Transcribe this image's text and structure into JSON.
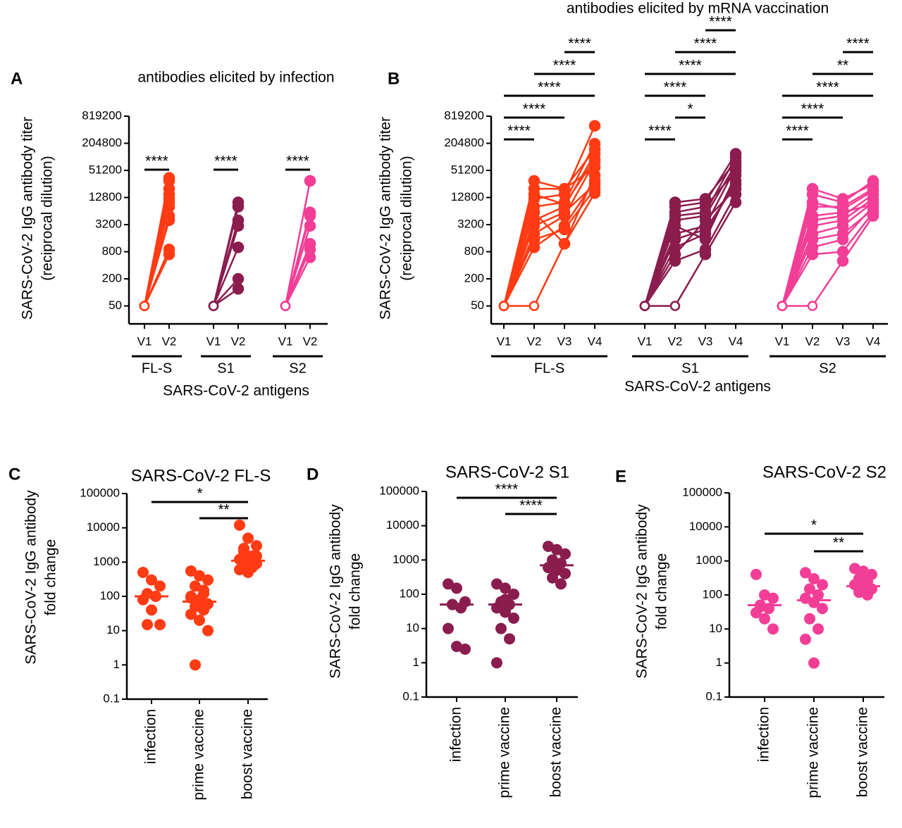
{
  "chart_data": [
    {
      "type": "line",
      "panel_label": "A",
      "title": "antibodies elicited by infection",
      "ylabel": [
        "SARS-CoV-2 IgG antibody titer",
        "(reciprocal dilution)"
      ],
      "xlabel": "SARS-CoV-2 antigens",
      "log_scale": true,
      "ylim": [
        20,
        819200
      ],
      "yticks": [
        50,
        200,
        800,
        3200,
        12800,
        51200,
        204800,
        819200
      ],
      "groups": [
        {
          "name": "FL-S",
          "color": "#ff3b14",
          "timepoints": [
            "V1",
            "V2"
          ],
          "subjects": [
            [
              50,
              35000
            ],
            [
              50,
              30000
            ],
            [
              50,
              20000
            ],
            [
              50,
              15000
            ],
            [
              50,
              12000
            ],
            [
              50,
              10000
            ],
            [
              50,
              8000
            ],
            [
              50,
              5000
            ],
            [
              50,
              4000
            ],
            [
              50,
              900
            ],
            [
              50,
              700
            ]
          ],
          "comparisons": [
            {
              "from": "V1",
              "to": "V2",
              "label": "****"
            }
          ]
        },
        {
          "name": "S1",
          "color": "#8a1c4e",
          "timepoints": [
            "V1",
            "V2"
          ],
          "subjects": [
            [
              50,
              10000
            ],
            [
              50,
              8000
            ],
            [
              50,
              4000
            ],
            [
              50,
              3000
            ],
            [
              50,
              1000
            ],
            [
              50,
              200
            ],
            [
              50,
              120
            ]
          ],
          "comparisons": [
            {
              "from": "V1",
              "to": "V2",
              "label": "****"
            }
          ]
        },
        {
          "name": "S2",
          "color": "#f23e96",
          "timepoints": [
            "V1",
            "V2"
          ],
          "subjects": [
            [
              50,
              30000
            ],
            [
              50,
              6000
            ],
            [
              50,
              5000
            ],
            [
              50,
              3000
            ],
            [
              50,
              1200
            ],
            [
              50,
              900
            ],
            [
              50,
              600
            ]
          ],
          "comparisons": [
            {
              "from": "V1",
              "to": "V2",
              "label": "****"
            }
          ]
        }
      ]
    },
    {
      "type": "line",
      "panel_label": "B",
      "title": "antibodies elicited by mRNA vaccination",
      "ylabel": [
        "SARS-CoV-2 IgG antibody titer",
        "(reciprocal dilution)"
      ],
      "xlabel": "SARS-CoV-2 antigens",
      "log_scale": true,
      "ylim": [
        20,
        819200
      ],
      "yticks": [
        50,
        200,
        800,
        3200,
        12800,
        51200,
        204800,
        819200
      ],
      "groups": [
        {
          "name": "FL-S",
          "color": "#ff3b14",
          "timepoints": [
            "V1",
            "V2",
            "V3",
            "V4"
          ],
          "subjects": [
            [
              50,
              50,
              1200,
              16000
            ],
            [
              50,
              1000,
              3000,
              30000
            ],
            [
              50,
              2000,
              5000,
              80000
            ],
            [
              50,
              4000,
              8000,
              120000
            ],
            [
              50,
              8000,
              10000,
              200000
            ],
            [
              50,
              12000,
              15000,
              500000
            ],
            [
              50,
              20000,
              20000,
              150000
            ],
            [
              50,
              30000,
              20000,
              60000
            ],
            [
              50,
              6000,
              1200,
              40000
            ],
            [
              50,
              3000,
              6000,
              25000
            ],
            [
              50,
              15000,
              9000,
              90000
            ],
            [
              50,
              1500,
              2500,
              20000
            ]
          ],
          "comparisons": [
            {
              "from": "V1",
              "to": "V2",
              "label": "****"
            },
            {
              "from": "V1",
              "to": "V3",
              "label": "****"
            },
            {
              "from": "V1",
              "to": "V4",
              "label": "****"
            },
            {
              "from": "V2",
              "to": "V4",
              "label": "****"
            },
            {
              "from": "V3",
              "to": "V4",
              "label": "****"
            }
          ]
        },
        {
          "name": "S1",
          "color": "#8a1c4e",
          "timepoints": [
            "V1",
            "V2",
            "V3",
            "V4"
          ],
          "subjects": [
            [
              50,
              50,
              700,
              10000
            ],
            [
              50,
              500,
              900,
              15000
            ],
            [
              50,
              1000,
              2000,
              30000
            ],
            [
              50,
              2000,
              3000,
              60000
            ],
            [
              50,
              5000,
              6000,
              100000
            ],
            [
              50,
              8000,
              10000,
              120000
            ],
            [
              50,
              10000,
              12000,
              80000
            ],
            [
              50,
              3000,
              1500,
              40000
            ],
            [
              50,
              700,
              4000,
              20000
            ],
            [
              50,
              6000,
              8000,
              50000
            ],
            [
              50,
              1500,
              2500,
              25000
            ],
            [
              50,
              4000,
              5000,
              70000
            ]
          ],
          "comparisons": [
            {
              "from": "V1",
              "to": "V2",
              "label": "****"
            },
            {
              "from": "V2",
              "to": "V3",
              "label": "*"
            },
            {
              "from": "V1",
              "to": "V3",
              "label": "****"
            },
            {
              "from": "V1",
              "to": "V4",
              "label": "****"
            },
            {
              "from": "V2",
              "to": "V4",
              "label": "****"
            },
            {
              "from": "V3",
              "to": "V4",
              "label": "****"
            }
          ]
        },
        {
          "name": "S2",
          "color": "#f23e96",
          "timepoints": [
            "V1",
            "V2",
            "V3",
            "V4"
          ],
          "subjects": [
            [
              50,
              50,
              500,
              5000
            ],
            [
              50,
              700,
              800,
              6000
            ],
            [
              50,
              1000,
              1500,
              8000
            ],
            [
              50,
              2000,
              3000,
              10000
            ],
            [
              50,
              4000,
              5000,
              15000
            ],
            [
              50,
              8000,
              8000,
              20000
            ],
            [
              50,
              20000,
              12000,
              25000
            ],
            [
              50,
              15000,
              10000,
              30000
            ],
            [
              50,
              3000,
              4000,
              12000
            ],
            [
              50,
              5000,
              6000,
              9000
            ],
            [
              50,
              1500,
              2000,
              7000
            ],
            [
              50,
              10000,
              7000,
              18000
            ]
          ],
          "comparisons": [
            {
              "from": "V1",
              "to": "V2",
              "label": "****"
            },
            {
              "from": "V1",
              "to": "V3",
              "label": "****"
            },
            {
              "from": "V1",
              "to": "V4",
              "label": "****"
            },
            {
              "from": "V2",
              "to": "V4",
              "label": "**"
            },
            {
              "from": "V3",
              "to": "V4",
              "label": "****"
            }
          ]
        }
      ]
    },
    {
      "type": "scatter",
      "panel_label": "C",
      "title": "SARS-CoV-2 FL-S",
      "color": "#ff3b14",
      "ylabel": [
        "SARS-CoV-2 IgG antibody",
        "fold change"
      ],
      "log_scale": true,
      "ylim": [
        0.1,
        100000
      ],
      "yticks": [
        0.1,
        1,
        10,
        100,
        1000,
        10000,
        100000
      ],
      "categories": [
        "infection",
        "prime vaccine",
        "boost vaccine"
      ],
      "values": [
        [
          500,
          300,
          200,
          120,
          100,
          80,
          40,
          15,
          15,
          100
        ],
        [
          550,
          400,
          300,
          200,
          150,
          100,
          80,
          60,
          50,
          40,
          30,
          20,
          10,
          1,
          120,
          90,
          70
        ],
        [
          12000,
          5000,
          3000,
          2000,
          1500,
          1200,
          1000,
          900,
          800,
          700,
          600,
          500,
          1500,
          2500
        ]
      ],
      "medians": [
        100,
        70,
        1100
      ],
      "comparisons": [
        {
          "from": "prime vaccine",
          "to": "boost vaccine",
          "label": "**"
        },
        {
          "from": "infection",
          "to": "boost vaccine",
          "label": "*"
        }
      ]
    },
    {
      "type": "scatter",
      "panel_label": "D",
      "title": "SARS-CoV-2 S1",
      "color": "#8a1c4e",
      "ylabel": [
        "SARS-CoV-2 IgG antibody",
        "fold change"
      ],
      "log_scale": true,
      "ylim": [
        0.1,
        100000
      ],
      "yticks": [
        0.1,
        1,
        10,
        100,
        1000,
        10000,
        100000
      ],
      "categories": [
        "infection",
        "prime vaccine",
        "boost vaccine"
      ],
      "values": [
        [
          200,
          150,
          60,
          50,
          40,
          10,
          3,
          2.5,
          50
        ],
        [
          200,
          150,
          100,
          60,
          50,
          40,
          30,
          20,
          10,
          5,
          1,
          70
        ],
        [
          2500,
          2000,
          1500,
          1000,
          800,
          600,
          500,
          400,
          300,
          200
        ]
      ],
      "medians": [
        50,
        50,
        700
      ],
      "comparisons": [
        {
          "from": "prime vaccine",
          "to": "boost vaccine",
          "label": "****"
        },
        {
          "from": "infection",
          "to": "boost vaccine",
          "label": "****"
        }
      ]
    },
    {
      "type": "scatter",
      "panel_label": "E",
      "title": "SARS-CoV-2 S2",
      "color": "#f23e96",
      "ylabel": [
        "SARS-CoV-2 IgG antibody",
        "fold change"
      ],
      "log_scale": true,
      "ylim": [
        0.1,
        100000
      ],
      "yticks": [
        0.1,
        1,
        10,
        100,
        1000,
        10000,
        100000
      ],
      "categories": [
        "infection",
        "prime vaccine",
        "boost vaccine"
      ],
      "values": [
        [
          400,
          100,
          80,
          50,
          40,
          30,
          20,
          10,
          45
        ],
        [
          450,
          300,
          200,
          150,
          100,
          80,
          60,
          40,
          20,
          10,
          5,
          1
        ],
        [
          600,
          500,
          400,
          300,
          250,
          200,
          180,
          150,
          120,
          100
        ]
      ],
      "medians": [
        50,
        70,
        180
      ],
      "comparisons": [
        {
          "from": "prime vaccine",
          "to": "boost vaccine",
          "label": "**"
        },
        {
          "from": "infection",
          "to": "boost vaccine",
          "label": "*"
        }
      ]
    }
  ]
}
